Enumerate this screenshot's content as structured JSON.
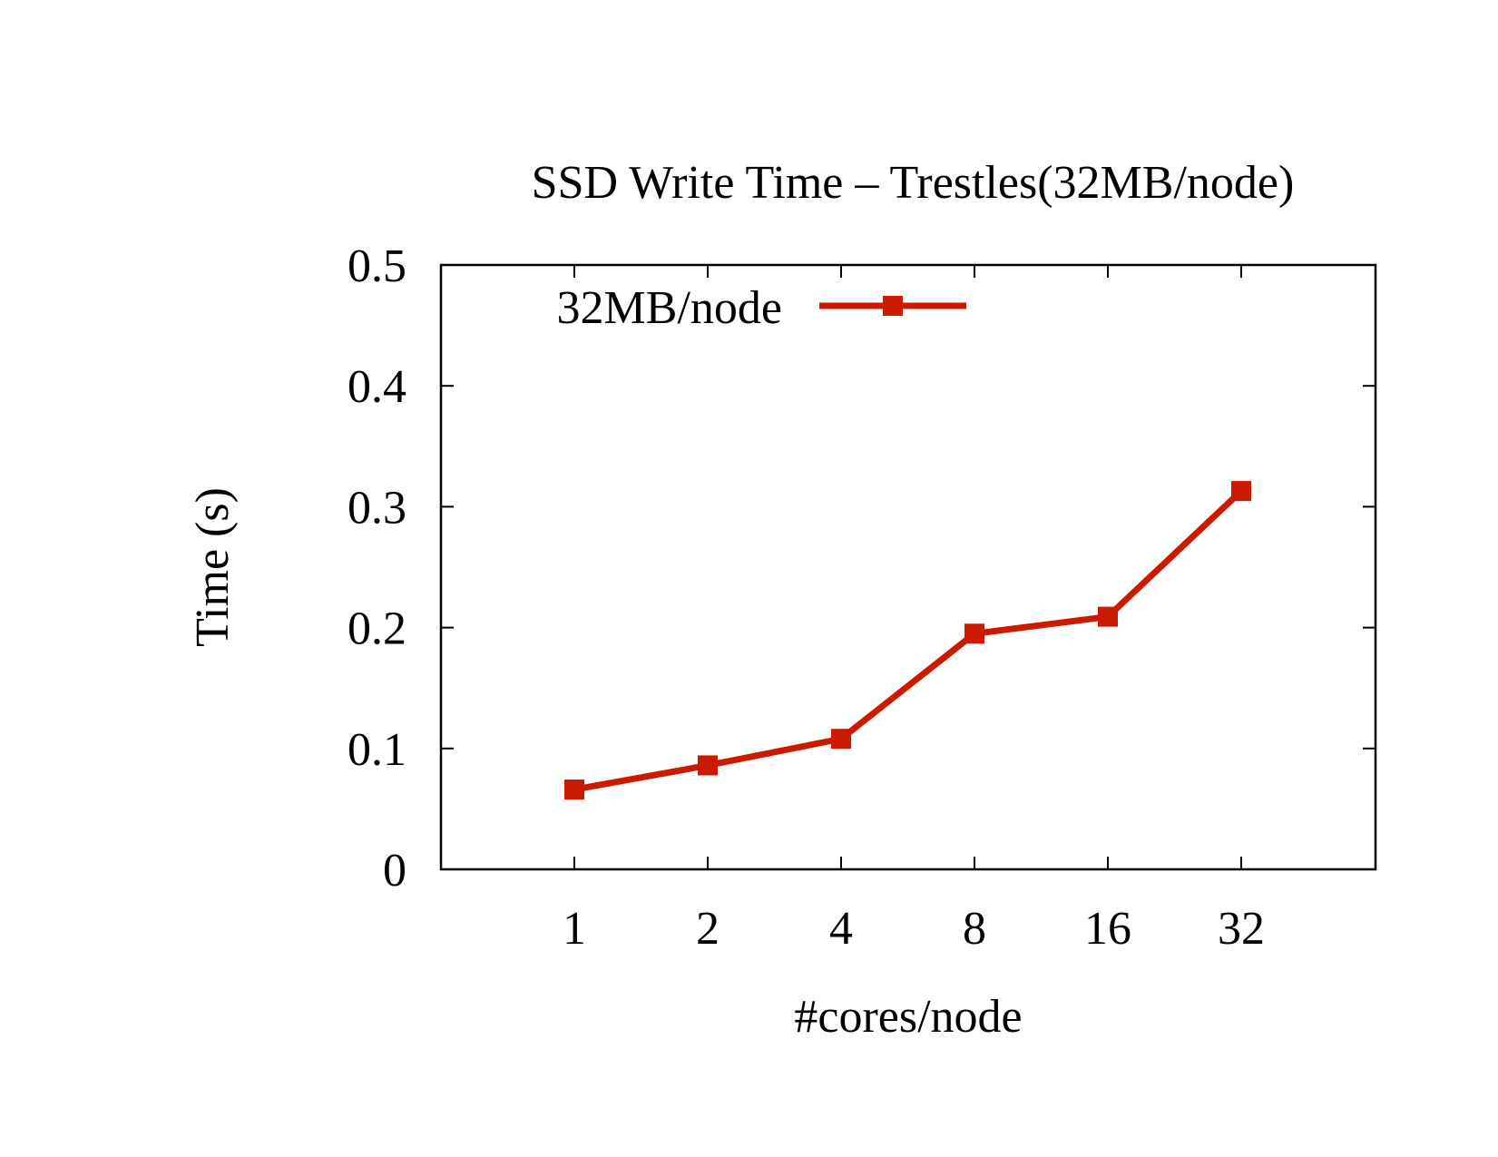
{
  "chart_data": {
    "type": "line",
    "title": "SSD Write Time – Trestles(32MB/node)",
    "xlabel": "#cores/node",
    "ylabel": "Time (s)",
    "categories": [
      "1",
      "2",
      "4",
      "8",
      "16",
      "32"
    ],
    "ylim": [
      0,
      0.5
    ],
    "yticks": [
      "0",
      "0.1",
      "0.2",
      "0.3",
      "0.4",
      "0.5"
    ],
    "yticks_values": [
      0,
      0.1,
      0.2,
      0.3,
      0.4,
      0.5
    ],
    "grid": false,
    "legend_position": "top-left",
    "series": [
      {
        "name": "32MB/node",
        "color": "#cc1a00",
        "marker": "square",
        "values": [
          0.066,
          0.086,
          0.108,
          0.195,
          0.209,
          0.313
        ]
      }
    ]
  }
}
